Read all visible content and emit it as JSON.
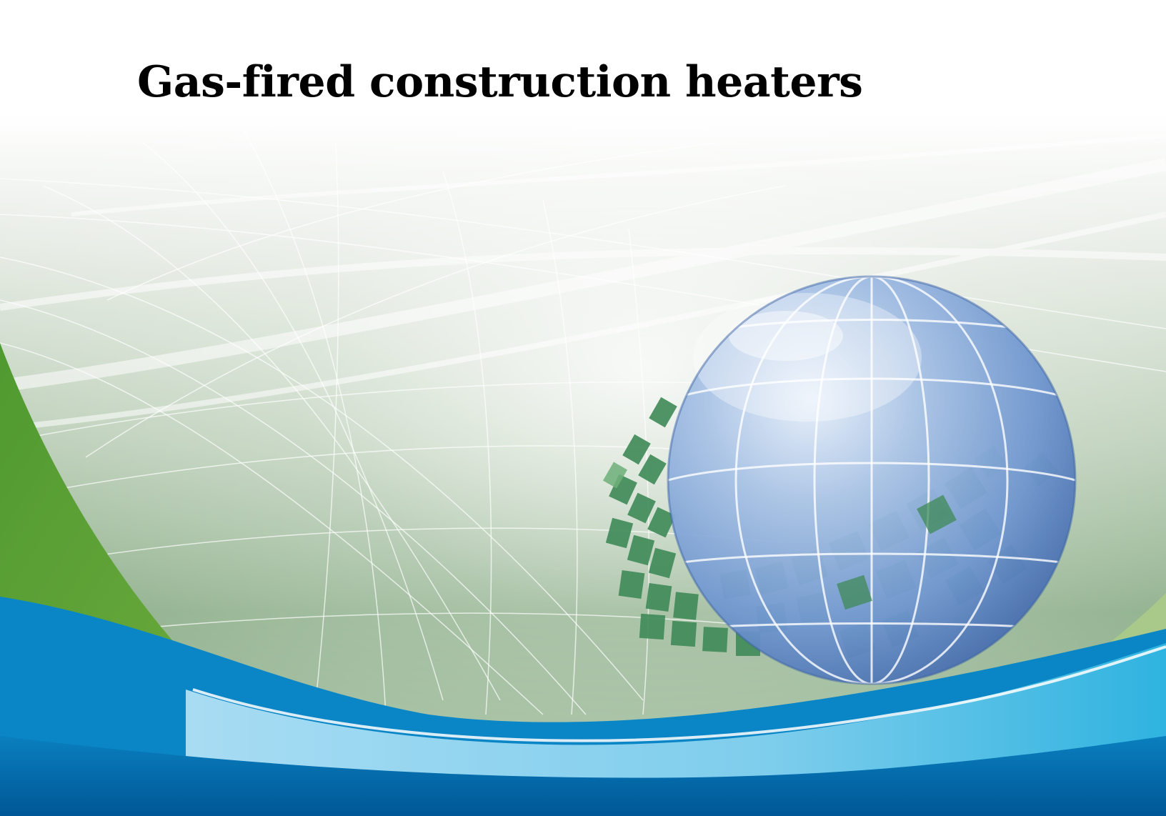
{
  "cover": {
    "title": "Gas-fired construction heaters"
  },
  "colors": {
    "green_band": "#5f9c38",
    "blue_band": "#0a7fbf",
    "light_blue_band": "#7fcfef",
    "deep_blue_band": "#005b9c",
    "globe": "#7fa8d8",
    "tiles": "#3f8a58"
  },
  "decorations": {
    "globe": "globe-graphic",
    "tiles": "green-tile-ribbon",
    "mesh": "wire-mesh-lines"
  }
}
